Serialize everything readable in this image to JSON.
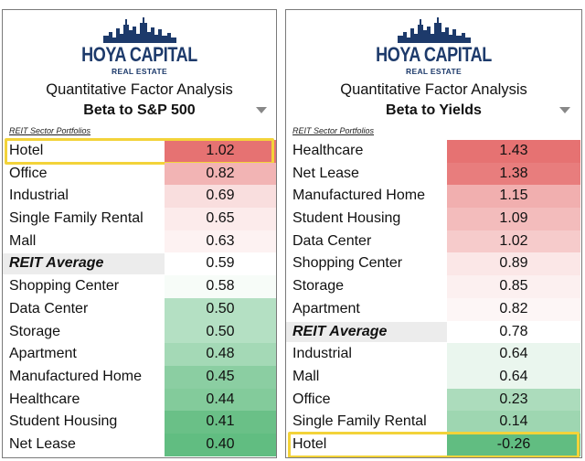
{
  "colors": {
    "highlight": "#f3d33a",
    "logo": "#1d3a6b",
    "high": "#e56b6b",
    "low": "#59b97a",
    "mid": "#ffffff"
  },
  "brand": {
    "name": "HOYA CAPITAL",
    "sub": "REAL ESTATE"
  },
  "chart_data": [
    {
      "type": "table",
      "title": "Quantitative Factor Analysis",
      "subtitle": "Beta to S&P 500",
      "caption": "REIT Sector Portfolios",
      "rows": [
        {
          "name": "Hotel",
          "value": "1.02",
          "highlight": true
        },
        {
          "name": "Office",
          "value": "0.82"
        },
        {
          "name": "Industrial",
          "value": "0.69"
        },
        {
          "name": "Single Family Rental",
          "value": "0.65"
        },
        {
          "name": "Mall",
          "value": "0.63"
        },
        {
          "name": "REIT Average",
          "value": "0.59",
          "average": true
        },
        {
          "name": "Shopping Center",
          "value": "0.58"
        },
        {
          "name": "Data Center",
          "value": "0.50"
        },
        {
          "name": "Storage",
          "value": "0.50"
        },
        {
          "name": "Apartment",
          "value": "0.48"
        },
        {
          "name": "Manufactured Home",
          "value": "0.45"
        },
        {
          "name": "Healthcare",
          "value": "0.44"
        },
        {
          "name": "Student Housing",
          "value": "0.41"
        },
        {
          "name": "Net Lease",
          "value": "0.40"
        }
      ]
    },
    {
      "type": "table",
      "title": "Quantitative Factor Analysis",
      "subtitle": "Beta to Yields",
      "caption": "REIT Sector Portfolios",
      "rows": [
        {
          "name": "Healthcare",
          "value": "1.43"
        },
        {
          "name": "Net Lease",
          "value": "1.38"
        },
        {
          "name": "Manufactured Home",
          "value": "1.15"
        },
        {
          "name": "Student Housing",
          "value": "1.09"
        },
        {
          "name": "Data Center",
          "value": "1.02"
        },
        {
          "name": "Shopping Center",
          "value": "0.89"
        },
        {
          "name": "Storage",
          "value": "0.85"
        },
        {
          "name": "Apartment",
          "value": "0.82"
        },
        {
          "name": "REIT Average",
          "value": "0.78",
          "average": true
        },
        {
          "name": "Industrial",
          "value": "0.64"
        },
        {
          "name": "Mall",
          "value": "0.64"
        },
        {
          "name": "Office",
          "value": "0.23"
        },
        {
          "name": "Single Family Rental",
          "value": "0.14"
        },
        {
          "name": "Hotel",
          "value": "-0.26",
          "highlight": true
        }
      ]
    }
  ]
}
